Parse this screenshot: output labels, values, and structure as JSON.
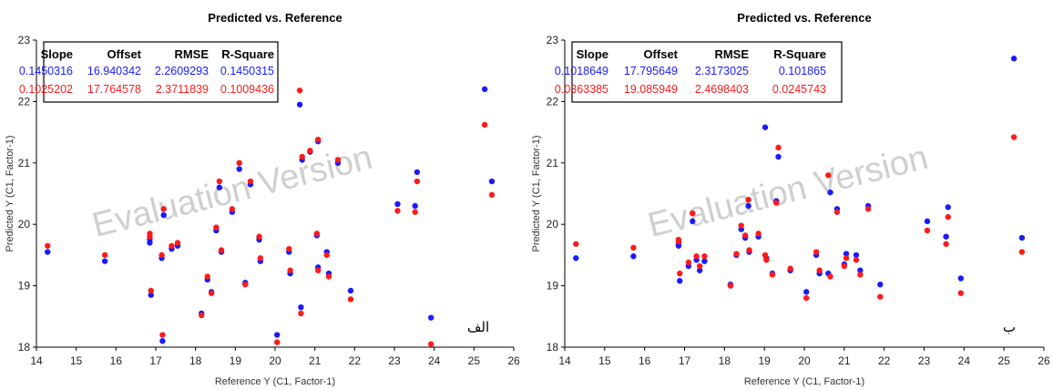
{
  "watermark": "Evaluation Version",
  "colors": {
    "series1": "#1a1aff",
    "series2": "#ff1a1a",
    "axis": "#000000"
  },
  "chart_data": [
    {
      "type": "scatter",
      "panel_label": "الف",
      "title": "Predicted vs. Reference",
      "xlabel": "Reference Y (C1, Factor-1)",
      "ylabel": "Predicted Y (C1, Factor-1)",
      "xlim": [
        14,
        26
      ],
      "ylim": [
        18,
        23
      ],
      "xticks": [
        14,
        15,
        16,
        17,
        18,
        19,
        20,
        21,
        22,
        23,
        24,
        25,
        26
      ],
      "yticks": [
        18,
        19,
        20,
        21,
        22,
        23
      ],
      "stats_headers": [
        "Slope",
        "Offset",
        "RMSE",
        "R-Square"
      ],
      "stats": [
        {
          "color": "#1a1aff",
          "values": [
            "0.1450316",
            "16.940342",
            "2.2609293",
            "0.1450315"
          ]
        },
        {
          "color": "#ff1a1a",
          "values": [
            "0.1025202",
            "17.764578",
            "2.3711839",
            "0.1009436"
          ]
        }
      ],
      "series": [
        {
          "color": "#1a1aff",
          "points": [
            [
              14.28,
              19.55
            ],
            [
              15.72,
              19.4
            ],
            [
              16.85,
              19.75
            ],
            [
              16.85,
              19.7
            ],
            [
              16.88,
              18.85
            ],
            [
              17.15,
              19.45
            ],
            [
              17.17,
              18.1
            ],
            [
              17.2,
              20.15
            ],
            [
              17.4,
              19.6
            ],
            [
              17.55,
              19.65
            ],
            [
              18.15,
              18.55
            ],
            [
              18.3,
              19.1
            ],
            [
              18.4,
              18.9
            ],
            [
              18.52,
              19.9
            ],
            [
              18.6,
              20.6
            ],
            [
              18.65,
              19.55
            ],
            [
              18.92,
              20.2
            ],
            [
              19.1,
              20.9
            ],
            [
              19.25,
              19.05
            ],
            [
              19.38,
              20.65
            ],
            [
              19.6,
              19.75
            ],
            [
              19.63,
              19.4
            ],
            [
              20.05,
              18.2
            ],
            [
              20.35,
              19.55
            ],
            [
              20.38,
              19.2
            ],
            [
              20.62,
              21.95
            ],
            [
              20.65,
              18.65
            ],
            [
              20.68,
              21.05
            ],
            [
              20.88,
              21.18
            ],
            [
              21.08,
              21.35
            ],
            [
              21.08,
              19.3
            ],
            [
              21.05,
              19.82
            ],
            [
              21.3,
              19.55
            ],
            [
              21.35,
              19.2
            ],
            [
              21.58,
              21.0
            ],
            [
              21.9,
              18.92
            ],
            [
              23.08,
              20.33
            ],
            [
              23.52,
              20.3
            ],
            [
              23.57,
              20.85
            ],
            [
              23.92,
              18.48
            ],
            [
              25.27,
              22.2
            ],
            [
              25.45,
              20.7
            ]
          ]
        },
        {
          "color": "#ff1a1a",
          "points": [
            [
              14.28,
              19.65
            ],
            [
              15.72,
              19.5
            ],
            [
              16.85,
              19.85
            ],
            [
              16.85,
              19.8
            ],
            [
              16.88,
              18.92
            ],
            [
              17.15,
              19.5
            ],
            [
              17.17,
              18.2
            ],
            [
              17.2,
              20.25
            ],
            [
              17.4,
              19.65
            ],
            [
              17.55,
              19.7
            ],
            [
              18.15,
              18.52
            ],
            [
              18.3,
              19.15
            ],
            [
              18.4,
              18.88
            ],
            [
              18.52,
              19.95
            ],
            [
              18.6,
              20.7
            ],
            [
              18.65,
              19.58
            ],
            [
              18.92,
              20.25
            ],
            [
              19.1,
              21.0
            ],
            [
              19.25,
              19.02
            ],
            [
              19.38,
              20.7
            ],
            [
              19.6,
              19.8
            ],
            [
              19.63,
              19.45
            ],
            [
              20.05,
              18.08
            ],
            [
              20.35,
              19.6
            ],
            [
              20.38,
              19.25
            ],
            [
              20.62,
              22.18
            ],
            [
              20.65,
              18.55
            ],
            [
              20.68,
              21.1
            ],
            [
              20.88,
              21.2
            ],
            [
              21.08,
              21.38
            ],
            [
              21.08,
              19.25
            ],
            [
              21.05,
              19.85
            ],
            [
              21.3,
              19.5
            ],
            [
              21.35,
              19.15
            ],
            [
              21.58,
              21.05
            ],
            [
              21.9,
              18.78
            ],
            [
              23.08,
              20.22
            ],
            [
              23.52,
              20.2
            ],
            [
              23.57,
              20.7
            ],
            [
              23.92,
              18.05
            ],
            [
              25.27,
              21.62
            ],
            [
              25.45,
              20.48
            ]
          ]
        }
      ]
    },
    {
      "type": "scatter",
      "panel_label": "ب",
      "title": "Predicted vs. Reference",
      "xlabel": "Reference Y (C1, Factor-1)",
      "ylabel": "Predicted Y (C1, Factor-1)",
      "xlim": [
        14,
        26
      ],
      "ylim": [
        18,
        23
      ],
      "xticks": [
        14,
        15,
        16,
        17,
        18,
        19,
        20,
        21,
        22,
        23,
        24,
        25,
        26
      ],
      "yticks": [
        18,
        19,
        20,
        21,
        22,
        23
      ],
      "stats_headers": [
        "Slope",
        "Offset",
        "RMSE",
        "R-Square"
      ],
      "stats": [
        {
          "color": "#1a1aff",
          "values": [
            "0.1018649",
            "17.795649",
            "2.3173025",
            "0.101865"
          ]
        },
        {
          "color": "#ff1a1a",
          "values": [
            "0.0363385",
            "19.085949",
            "2.4698403",
            "0.0245743"
          ]
        }
      ],
      "series": [
        {
          "color": "#1a1aff",
          "points": [
            [
              14.28,
              19.45
            ],
            [
              15.72,
              19.48
            ],
            [
              16.85,
              19.68
            ],
            [
              16.85,
              19.65
            ],
            [
              16.88,
              19.08
            ],
            [
              17.1,
              19.32
            ],
            [
              17.2,
              20.05
            ],
            [
              17.3,
              19.42
            ],
            [
              17.38,
              19.25
            ],
            [
              17.5,
              19.4
            ],
            [
              18.15,
              19.02
            ],
            [
              18.3,
              19.5
            ],
            [
              18.42,
              19.92
            ],
            [
              18.52,
              19.78
            ],
            [
              18.6,
              20.3
            ],
            [
              18.62,
              19.55
            ],
            [
              18.85,
              19.8
            ],
            [
              19.02,
              21.58
            ],
            [
              19.05,
              19.45
            ],
            [
              19.2,
              19.2
            ],
            [
              19.3,
              20.38
            ],
            [
              19.35,
              21.1
            ],
            [
              19.65,
              19.25
            ],
            [
              20.05,
              18.9
            ],
            [
              20.3,
              19.5
            ],
            [
              20.38,
              19.2
            ],
            [
              20.6,
              19.2
            ],
            [
              20.65,
              20.52
            ],
            [
              20.82,
              20.25
            ],
            [
              21.0,
              19.35
            ],
            [
              21.05,
              19.52
            ],
            [
              21.3,
              19.5
            ],
            [
              21.4,
              19.25
            ],
            [
              21.6,
              20.3
            ],
            [
              21.9,
              19.02
            ],
            [
              23.08,
              20.05
            ],
            [
              23.55,
              19.8
            ],
            [
              23.6,
              20.28
            ],
            [
              23.92,
              19.12
            ],
            [
              25.25,
              22.7
            ],
            [
              25.45,
              19.78
            ]
          ]
        },
        {
          "color": "#ff1a1a",
          "points": [
            [
              14.28,
              19.68
            ],
            [
              15.72,
              19.62
            ],
            [
              16.85,
              19.75
            ],
            [
              16.85,
              19.72
            ],
            [
              16.88,
              19.2
            ],
            [
              17.1,
              19.38
            ],
            [
              17.2,
              20.18
            ],
            [
              17.3,
              19.48
            ],
            [
              17.38,
              19.32
            ],
            [
              17.5,
              19.48
            ],
            [
              18.15,
              19.0
            ],
            [
              18.3,
              19.52
            ],
            [
              18.42,
              19.98
            ],
            [
              18.52,
              19.82
            ],
            [
              18.6,
              20.4
            ],
            [
              18.62,
              19.58
            ],
            [
              18.85,
              19.85
            ],
            [
              19.02,
              19.5
            ],
            [
              19.05,
              19.42
            ],
            [
              19.2,
              19.18
            ],
            [
              19.3,
              20.35
            ],
            [
              19.35,
              21.25
            ],
            [
              19.65,
              19.28
            ],
            [
              20.05,
              18.8
            ],
            [
              20.3,
              19.55
            ],
            [
              20.38,
              19.25
            ],
            [
              20.6,
              20.8
            ],
            [
              20.65,
              19.15
            ],
            [
              20.82,
              20.2
            ],
            [
              21.0,
              19.32
            ],
            [
              21.05,
              19.45
            ],
            [
              21.3,
              19.42
            ],
            [
              21.4,
              19.18
            ],
            [
              21.6,
              20.25
            ],
            [
              21.9,
              18.82
            ],
            [
              23.08,
              19.9
            ],
            [
              23.55,
              19.68
            ],
            [
              23.6,
              20.12
            ],
            [
              23.92,
              18.88
            ],
            [
              25.25,
              21.42
            ],
            [
              25.45,
              19.55
            ]
          ]
        }
      ]
    }
  ]
}
